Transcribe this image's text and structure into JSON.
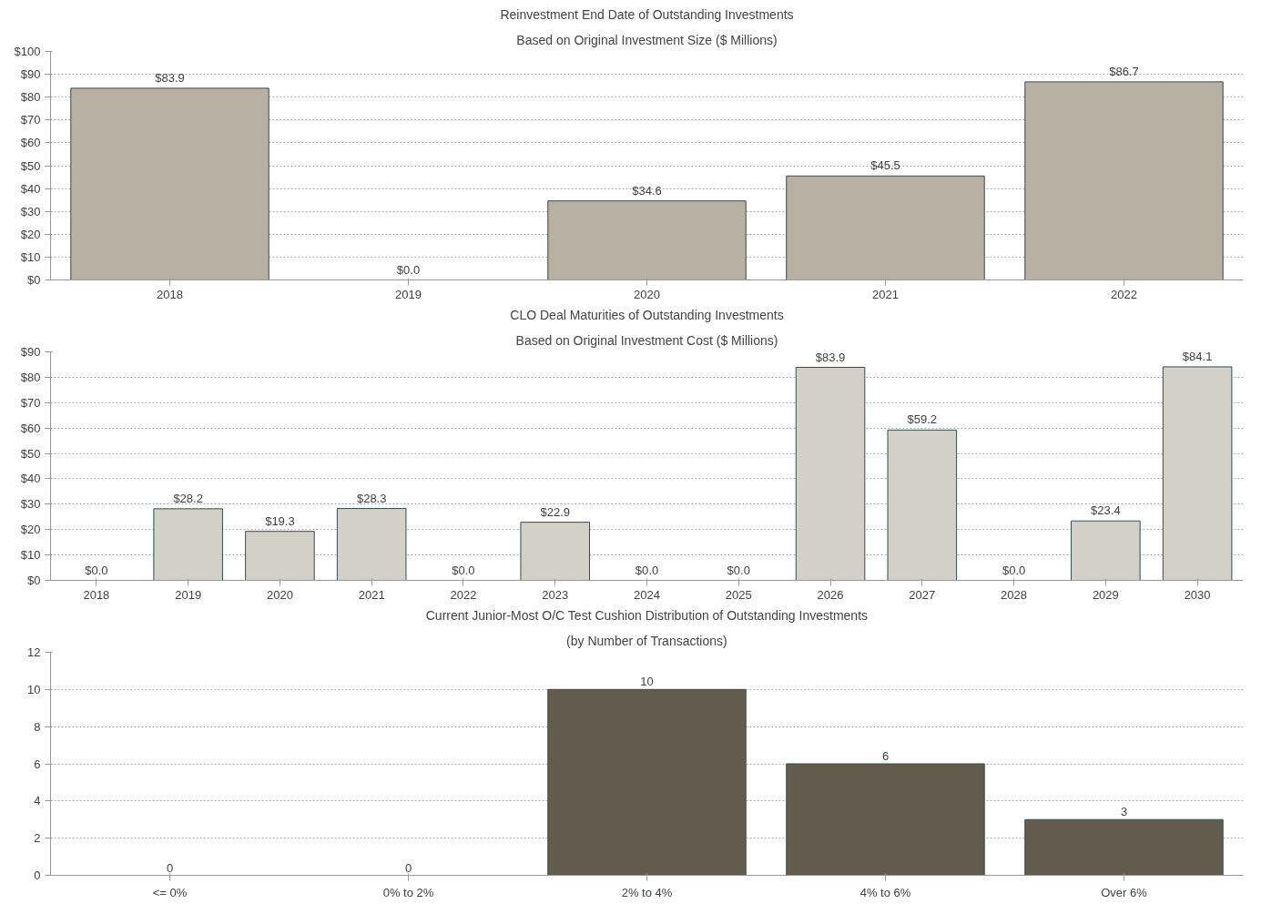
{
  "chart_data": [
    {
      "type": "bar",
      "title": "Reinvestment End Date of Outstanding Investments",
      "subtitle": "Based on Original Investment Size ($ Millions)",
      "categories": [
        "2018",
        "2019",
        "2020",
        "2021",
        "2022"
      ],
      "values": [
        83.9,
        0.0,
        34.6,
        45.5,
        86.7
      ],
      "value_labels": [
        "$83.9",
        "$0.0",
        "$34.6",
        "$45.5",
        "$86.7"
      ],
      "color": "#b7b0a3",
      "ylim": [
        0,
        100
      ],
      "yticks": [
        {
          "value": 0,
          "label": "$0"
        },
        {
          "value": 10,
          "label": "$10"
        },
        {
          "value": 20,
          "label": "$20"
        },
        {
          "value": 30,
          "label": "$30"
        },
        {
          "value": 40,
          "label": "$40"
        },
        {
          "value": 50,
          "label": "$50"
        },
        {
          "value": 60,
          "label": "$60"
        },
        {
          "value": 70,
          "label": "$70"
        },
        {
          "value": 80,
          "label": "$80"
        },
        {
          "value": 90,
          "label": "$90"
        },
        {
          "value": 100,
          "label": "$100"
        }
      ],
      "grid": "y"
    },
    {
      "type": "bar",
      "title": "CLO Deal Maturities of Outstanding Investments",
      "subtitle": "Based on Original Investment Cost ($ Millions)",
      "categories": [
        "2018",
        "2019",
        "2020",
        "2021",
        "2022",
        "2023",
        "2024",
        "2025",
        "2026",
        "2027",
        "2028",
        "2029",
        "2030"
      ],
      "values": [
        0.0,
        28.2,
        19.3,
        28.3,
        0.0,
        22.9,
        0.0,
        0.0,
        83.9,
        59.2,
        0.0,
        23.4,
        84.1
      ],
      "value_labels": [
        "$0.0",
        "$28.2",
        "$19.3",
        "$28.3",
        "$0.0",
        "$22.9",
        "$0.0",
        "$0.0",
        "$83.9",
        "$59.2",
        "$0.0",
        "$23.4",
        "$84.1"
      ],
      "color": "#d3d0c7",
      "ylim": [
        0,
        90
      ],
      "yticks": [
        {
          "value": 0,
          "label": "$0"
        },
        {
          "value": 10,
          "label": "$10"
        },
        {
          "value": 20,
          "label": "$20"
        },
        {
          "value": 30,
          "label": "$30"
        },
        {
          "value": 40,
          "label": "$40"
        },
        {
          "value": 50,
          "label": "$50"
        },
        {
          "value": 60,
          "label": "$60"
        },
        {
          "value": 70,
          "label": "$70"
        },
        {
          "value": 80,
          "label": "$80"
        },
        {
          "value": 90,
          "label": "$90"
        }
      ],
      "grid": "y"
    },
    {
      "type": "bar",
      "title": "Current Junior-Most O/C Test Cushion Distribution of Outstanding Investments",
      "subtitle": "(by Number of Transactions)",
      "categories": [
        "<= 0%",
        "0% to 2%",
        "2% to 4%",
        "4% to 6%",
        "Over 6%"
      ],
      "values": [
        0,
        0,
        10,
        6,
        3
      ],
      "data_labels": true,
      "color": "#635b4e",
      "ylim": [
        0,
        12
      ],
      "yticks": [
        0,
        2,
        4,
        6,
        8,
        10,
        12
      ],
      "grid": "y"
    }
  ]
}
